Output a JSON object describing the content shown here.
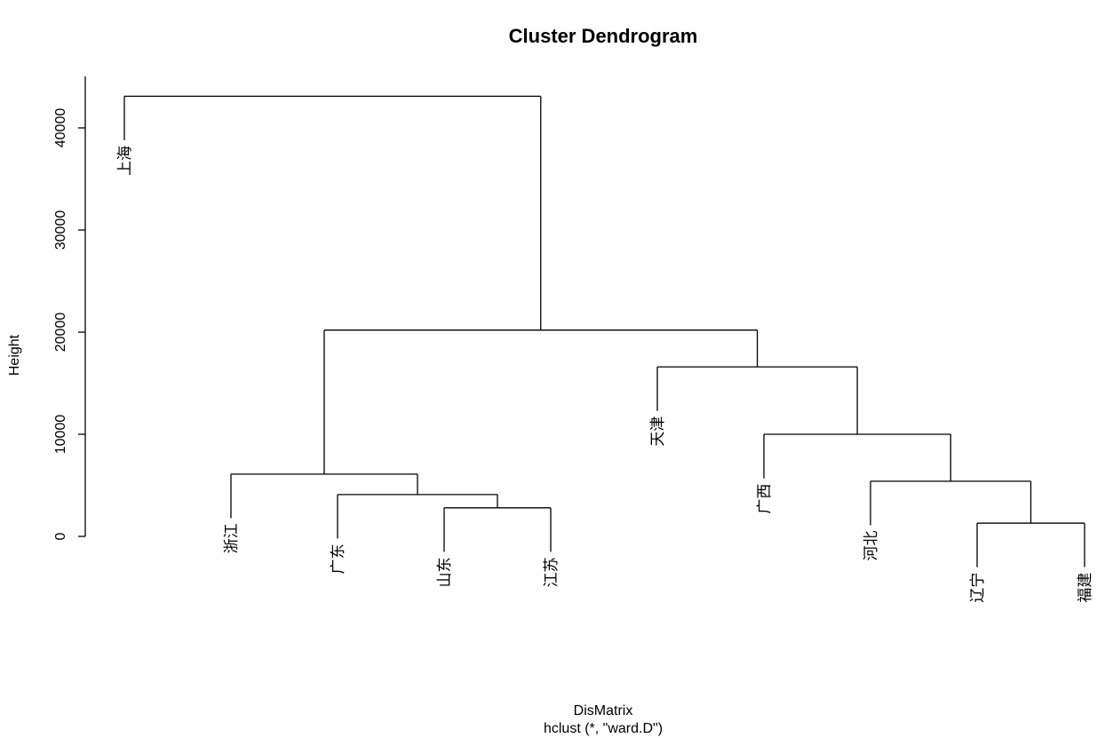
{
  "chart_data": {
    "type": "dendrogram",
    "title": "Cluster Dendrogram",
    "ylabel": "Height",
    "xlabel": "DisMatrix",
    "sublabel": "hclust (*, \"ward.D\")",
    "ylim": [
      0,
      45000
    ],
    "yticks": [
      0,
      10000,
      20000,
      30000,
      40000
    ],
    "leaves": [
      "上海",
      "浙江",
      "广东",
      "山东",
      "江苏",
      "天津",
      "广西",
      "河北",
      "辽宁",
      "福建"
    ],
    "merges": [
      {
        "left": "leaf:8",
        "right": "leaf:9",
        "height": 1300
      },
      {
        "left": "leaf:3",
        "right": "leaf:4",
        "height": 2800
      },
      {
        "left": "leaf:2",
        "right": "node:1",
        "height": 4100
      },
      {
        "left": "leaf:7",
        "right": "node:0",
        "height": 5400
      },
      {
        "left": "leaf:1",
        "right": "node:2",
        "height": 6100
      },
      {
        "left": "leaf:6",
        "right": "node:3",
        "height": 10000
      },
      {
        "left": "leaf:5",
        "right": "node:5",
        "height": 16600
      },
      {
        "left": "node:4",
        "right": "node:6",
        "height": 20200
      },
      {
        "left": "leaf:0",
        "right": "node:7",
        "height": 43100
      }
    ]
  }
}
